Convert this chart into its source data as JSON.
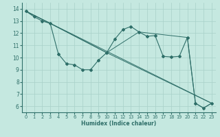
{
  "xlabel": "Humidex (Indice chaleur)",
  "bg_color": "#c5e8e0",
  "line_color": "#2e6e68",
  "grid_color": "#a8d0c8",
  "xlim": [
    -0.5,
    23.5
  ],
  "ylim": [
    5.5,
    14.5
  ],
  "yticks": [
    6,
    7,
    8,
    9,
    10,
    11,
    12,
    13,
    14
  ],
  "xticks": [
    0,
    1,
    2,
    3,
    4,
    5,
    6,
    7,
    8,
    9,
    10,
    11,
    12,
    13,
    14,
    15,
    16,
    17,
    18,
    19,
    20,
    21,
    22,
    23
  ],
  "series": [
    [
      0,
      13.8
    ],
    [
      1,
      13.35
    ],
    [
      2,
      13.0
    ],
    [
      3,
      12.8
    ],
    [
      4,
      10.3
    ],
    [
      5,
      9.5
    ],
    [
      6,
      9.4
    ],
    [
      7,
      9.0
    ],
    [
      8,
      9.0
    ],
    [
      9,
      9.8
    ],
    [
      10,
      10.4
    ],
    [
      11,
      11.5
    ],
    [
      12,
      12.3
    ],
    [
      13,
      12.55
    ],
    [
      14,
      12.1
    ],
    [
      15,
      11.75
    ],
    [
      16,
      11.8
    ],
    [
      17,
      10.1
    ],
    [
      18,
      10.05
    ],
    [
      19,
      10.1
    ],
    [
      20,
      11.65
    ],
    [
      21,
      6.25
    ],
    [
      22,
      5.85
    ],
    [
      23,
      6.25
    ]
  ],
  "line2": [
    [
      0,
      13.8
    ],
    [
      3,
      12.8
    ],
    [
      10,
      10.4
    ],
    [
      14,
      12.1
    ],
    [
      20,
      11.65
    ],
    [
      21,
      6.25
    ],
    [
      22,
      5.85
    ],
    [
      23,
      6.25
    ]
  ],
  "line3": [
    [
      0,
      13.8
    ],
    [
      3,
      12.8
    ],
    [
      10,
      10.4
    ],
    [
      23,
      6.25
    ]
  ],
  "line4": [
    [
      0,
      13.8
    ],
    [
      23,
      6.25
    ]
  ]
}
